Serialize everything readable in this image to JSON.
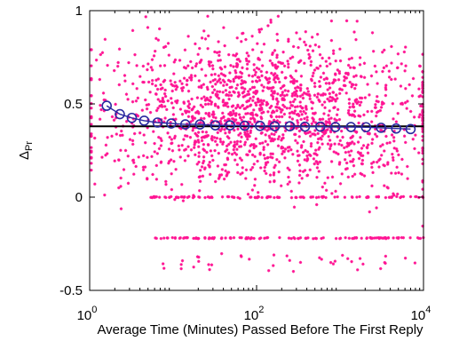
{
  "chart_data": {
    "type": "scatter",
    "xscale": "log",
    "xlim": [
      1,
      10000
    ],
    "ylim": [
      -0.5,
      1
    ],
    "xlabel": "Average Time (Minutes) Passed Before The First Reply",
    "ylabel": {
      "base": "Δ",
      "subscript": "Pr"
    },
    "xticks": [
      {
        "value": 1,
        "base": "10",
        "exp": "0"
      },
      {
        "value": 100,
        "base": "10",
        "exp": "2"
      },
      {
        "value": 10000,
        "base": "10",
        "exp": "4"
      }
    ],
    "yticks": [
      {
        "value": -0.5,
        "label": "-0.5"
      },
      {
        "value": 0,
        "label": "0"
      },
      {
        "value": 0.5,
        "label": "0.5"
      },
      {
        "value": 1,
        "label": "1"
      }
    ],
    "grid": false,
    "legend": "none",
    "series": [
      {
        "kind": "scatter-cloud",
        "marker": "asterisk",
        "color": "#ff1493",
        "x_range": [
          1,
          10000
        ],
        "y_center": 0.45,
        "y_range": [
          -0.42,
          0.97
        ],
        "bands": [
          {
            "y": 0.0,
            "x_range": [
              5,
              10000
            ]
          },
          {
            "y": -0.22,
            "x_range": [
              6,
              10000
            ]
          }
        ]
      },
      {
        "kind": "binned-mean",
        "marker": "circle-line",
        "color": "#2a2aa0",
        "x": [
          1.6,
          2.3,
          3.2,
          4.5,
          6.5,
          9.5,
          14,
          21,
          32,
          48,
          72,
          110,
          165,
          250,
          380,
          580,
          880,
          1350,
          2050,
          3100,
          4700,
          7000
        ],
        "y": [
          0.49,
          0.445,
          0.425,
          0.41,
          0.4,
          0.395,
          0.39,
          0.39,
          0.385,
          0.385,
          0.383,
          0.382,
          0.38,
          0.38,
          0.378,
          0.378,
          0.376,
          0.376,
          0.375,
          0.372,
          0.368,
          0.365
        ]
      },
      {
        "kind": "reference-line",
        "color": "#000000",
        "y": 0.38,
        "x_range": [
          1,
          10000
        ]
      }
    ]
  }
}
